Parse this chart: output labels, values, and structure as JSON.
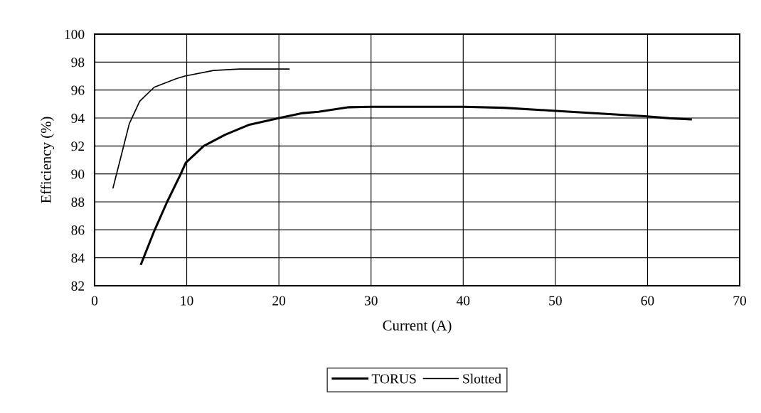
{
  "chart_data": {
    "type": "line",
    "xlabel": "Current (A)",
    "ylabel": "Efficiency (%)",
    "xlim": [
      0,
      70
    ],
    "ylim": [
      82,
      100
    ],
    "xticks": [
      0,
      10,
      20,
      30,
      40,
      50,
      60,
      70
    ],
    "yticks": [
      82,
      84,
      86,
      88,
      90,
      92,
      94,
      96,
      98,
      100
    ],
    "grid": true,
    "legend": "bottom",
    "marker": "none",
    "line_style": "solid",
    "series": [
      {
        "name": "TORUS",
        "color": "#000000",
        "x": [
          5.05,
          6.46,
          7.87,
          9.28,
          9.9,
          11.85,
          14.15,
          16.7,
          20.05,
          22.6,
          24.3,
          27.6,
          30,
          40,
          44.4,
          49.75,
          59.7,
          62.4,
          64.7
        ],
        "values": [
          83.56,
          85.9,
          88.0,
          89.9,
          90.8,
          92.0,
          92.8,
          93.5,
          94.0,
          94.35,
          94.45,
          94.77,
          94.8,
          94.8,
          94.73,
          94.52,
          94.13,
          93.98,
          93.9
        ]
      },
      {
        "name": "Slotted",
        "color": "#000000",
        "x": [
          2,
          3,
          3.77,
          4.9,
          6.46,
          8.8,
          9.8,
          12.9,
          15.7,
          21.1
        ],
        "values": [
          89.0,
          91.6,
          93.6,
          95.2,
          96.2,
          96.8,
          97.0,
          97.4,
          97.5,
          97.5
        ]
      }
    ]
  }
}
